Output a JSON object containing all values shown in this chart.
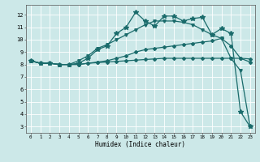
{
  "xlabel": "Humidex (Indice chaleur)",
  "bg_color": "#cce8e8",
  "grid_color": "#ffffff",
  "line_color": "#1a6b6b",
  "xlim": [
    -0.5,
    23.5
  ],
  "ylim": [
    2.5,
    12.8
  ],
  "yticks": [
    3,
    4,
    5,
    6,
    7,
    8,
    9,
    10,
    11,
    12
  ],
  "xticks": [
    0,
    1,
    2,
    3,
    4,
    5,
    6,
    7,
    8,
    9,
    10,
    11,
    12,
    13,
    14,
    15,
    16,
    17,
    18,
    19,
    20,
    21,
    22,
    23
  ],
  "line1_x": [
    0,
    1,
    2,
    3,
    4,
    5,
    6,
    7,
    8,
    9,
    10,
    11,
    12,
    13,
    14,
    15,
    16,
    17,
    18,
    19,
    20,
    21,
    22,
    23
  ],
  "line1_y": [
    8.3,
    8.1,
    8.1,
    8.0,
    8.0,
    8.0,
    8.1,
    8.15,
    8.2,
    8.25,
    8.3,
    8.35,
    8.4,
    8.45,
    8.5,
    8.5,
    8.5,
    8.5,
    8.5,
    8.5,
    8.5,
    8.5,
    8.5,
    8.45
  ],
  "line2_x": [
    0,
    1,
    2,
    3,
    4,
    5,
    6,
    7,
    8,
    9,
    10,
    11,
    12,
    13,
    14,
    15,
    16,
    17,
    18,
    19,
    20,
    21,
    22,
    23
  ],
  "line2_y": [
    8.3,
    8.1,
    8.1,
    8.0,
    8.0,
    8.0,
    8.1,
    8.2,
    8.3,
    8.5,
    8.7,
    9.0,
    9.2,
    9.3,
    9.4,
    9.5,
    9.6,
    9.7,
    9.8,
    9.9,
    10.1,
    9.5,
    8.5,
    8.2
  ],
  "line3_x": [
    0,
    1,
    2,
    3,
    4,
    5,
    6,
    7,
    8,
    9,
    10,
    11,
    12,
    13,
    14,
    15,
    16,
    17,
    18,
    19,
    20,
    21,
    22,
    23
  ],
  "line3_y": [
    8.3,
    8.1,
    8.1,
    8.0,
    8.0,
    8.3,
    8.7,
    9.3,
    9.6,
    10.0,
    10.4,
    10.8,
    11.2,
    11.5,
    11.5,
    11.5,
    11.4,
    11.2,
    10.8,
    10.4,
    10.1,
    8.5,
    7.5,
    3.0
  ],
  "line4_x": [
    0,
    1,
    2,
    3,
    4,
    5,
    6,
    7,
    8,
    9,
    10,
    11,
    12,
    13,
    14,
    15,
    16,
    17,
    18,
    19,
    20,
    21,
    22,
    23
  ],
  "line4_y": [
    8.3,
    8.1,
    8.1,
    8.0,
    8.0,
    8.1,
    8.5,
    9.2,
    9.5,
    10.5,
    11.0,
    12.2,
    11.5,
    11.1,
    11.9,
    11.9,
    11.5,
    11.7,
    11.8,
    10.4,
    10.9,
    10.5,
    4.2,
    3.0
  ]
}
